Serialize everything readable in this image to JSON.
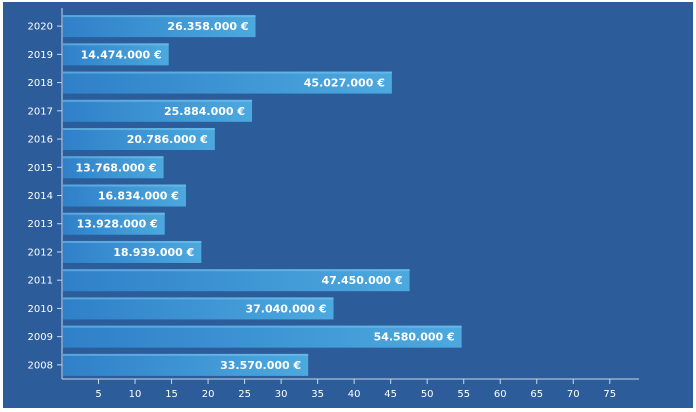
{
  "chart_data": {
    "type": "bar",
    "orientation": "horizontal",
    "categories": [
      "2020",
      "2019",
      "2018",
      "2017",
      "2016",
      "2015",
      "2014",
      "2013",
      "2012",
      "2011",
      "2010",
      "2009",
      "2008"
    ],
    "values": [
      26.358,
      14.474,
      45.027,
      25.884,
      20.786,
      13.768,
      16.834,
      13.928,
      18.939,
      47.45,
      37.04,
      54.58,
      33.57
    ],
    "data_labels": [
      "26.358.000 €",
      "14.474.000 €",
      "45.027.000 €",
      "25.884.000 €",
      "20.786.000 €",
      "13.768.000 €",
      "16.834.000 €",
      "13.928.000 €",
      "18.939.000 €",
      "47.450.000 €",
      "37.040.000 €",
      "54.580.000 €",
      "33.570.000 €"
    ],
    "x_ticks": [
      5,
      10,
      15,
      20,
      25,
      30,
      35,
      40,
      45,
      50,
      55,
      60,
      65,
      70,
      75
    ],
    "xlim": [
      0,
      79
    ],
    "title": "",
    "xlabel": "",
    "ylabel": "",
    "grid": false,
    "colors": {
      "background": "#2c5c9a",
      "bar_light": "#49a6dc",
      "bar_dark": "#2e7cc4",
      "axis": "#c8d8ec",
      "text": "#ffffff"
    }
  }
}
